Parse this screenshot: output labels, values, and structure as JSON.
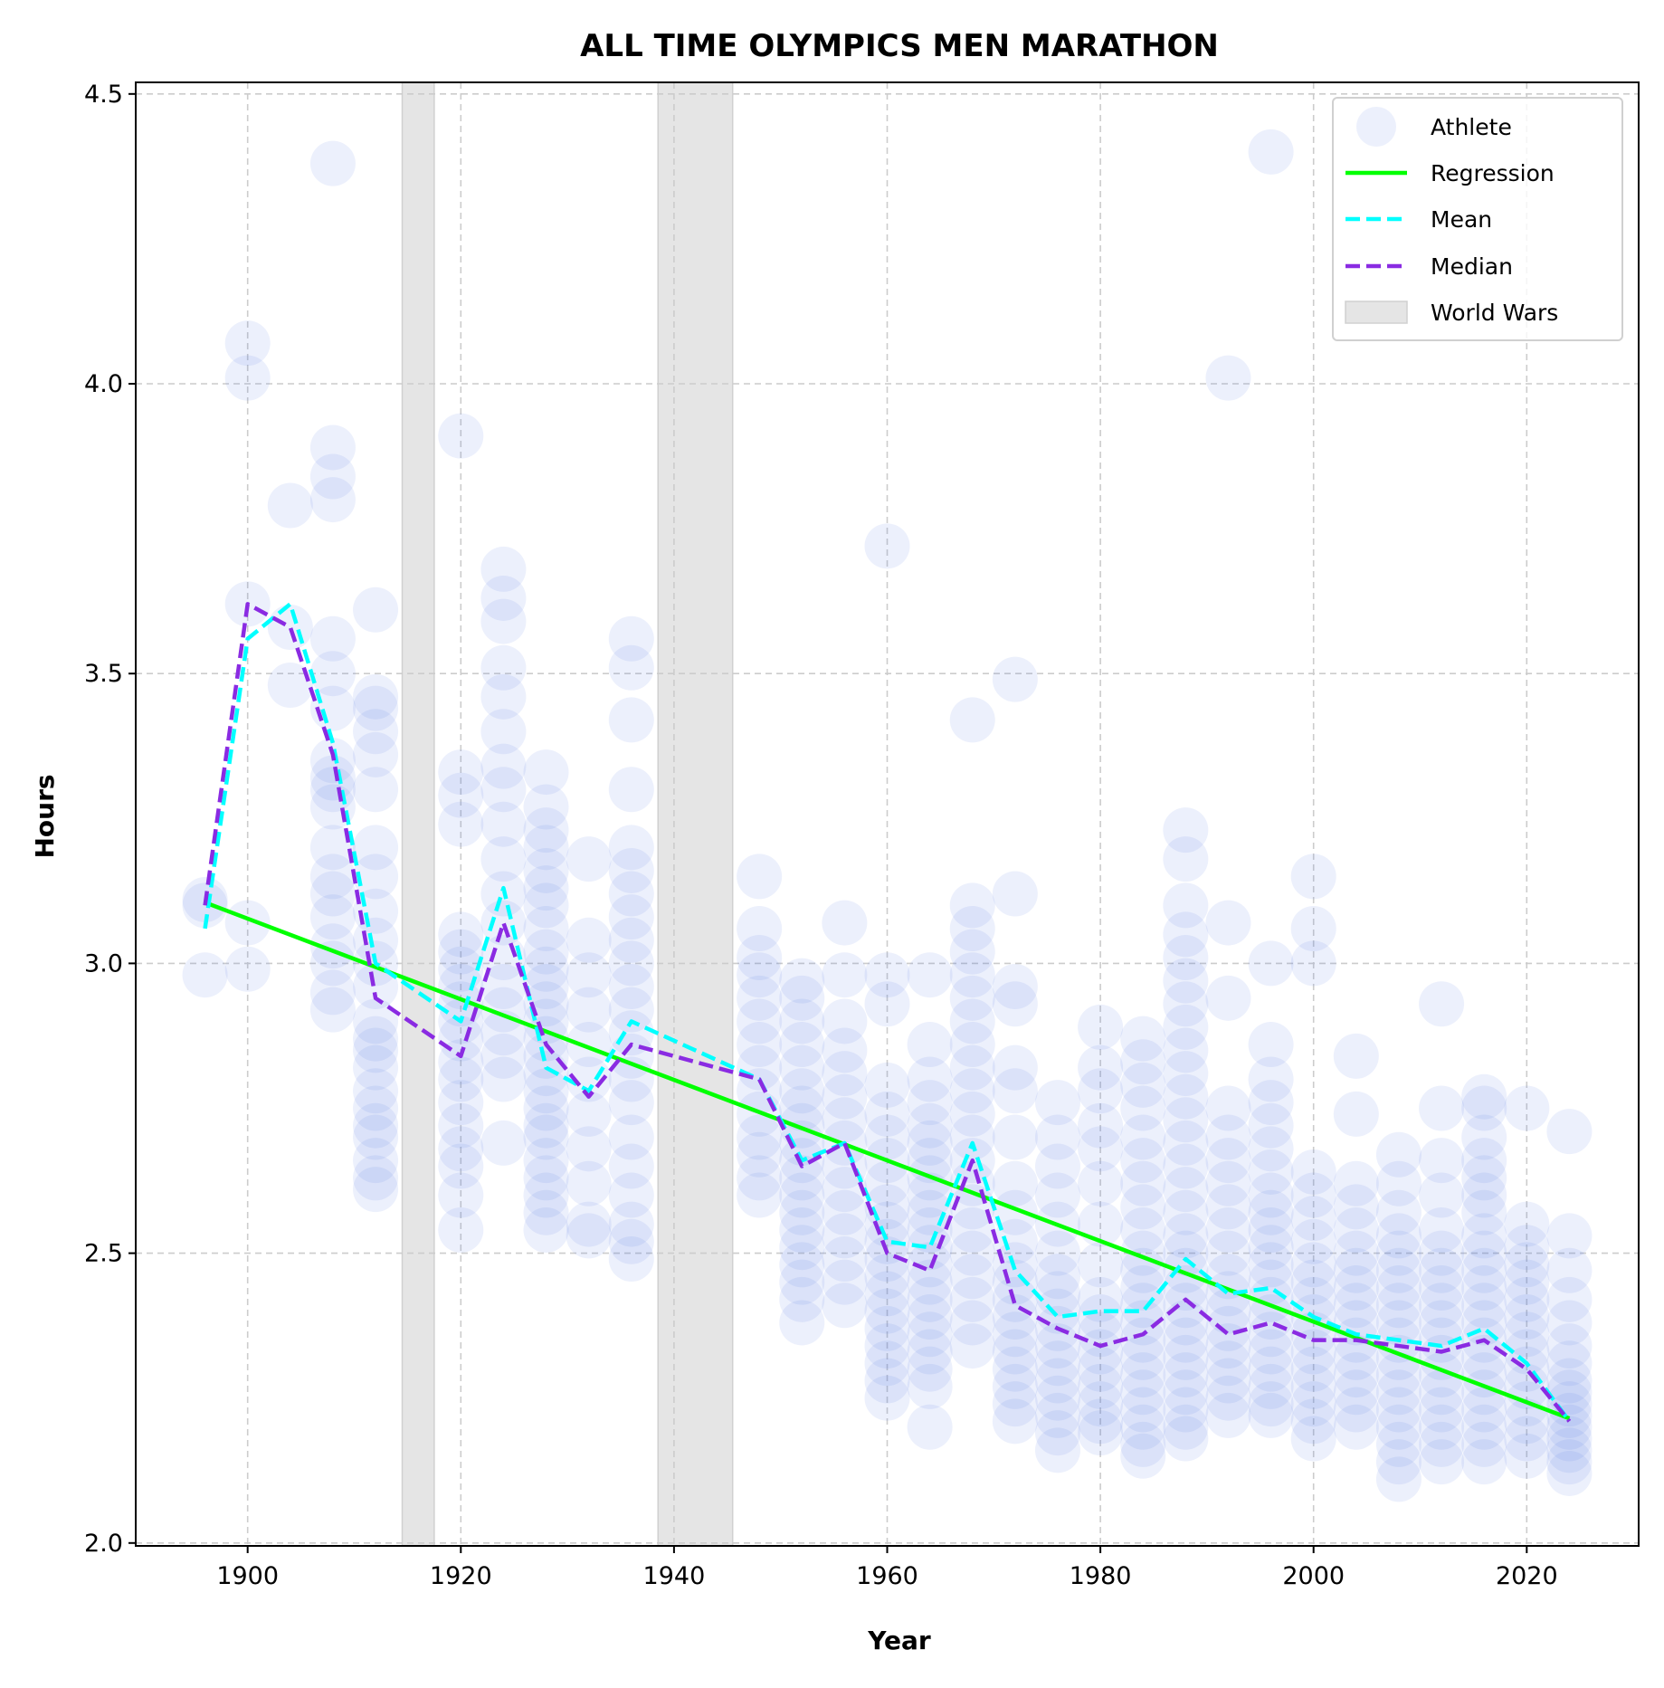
{
  "chart_data": {
    "type": "scatter",
    "title": "ALL TIME OLYMPICS MEN MARATHON",
    "xlabel": "Year",
    "ylabel": "Hours",
    "xlim": [
      1889.5,
      2030.5
    ],
    "ylim": [
      1.995,
      4.52
    ],
    "xticks": [
      1900,
      1920,
      1940,
      1960,
      1980,
      2000,
      2020
    ],
    "yticks": [
      2.0,
      2.5,
      3.0,
      3.5,
      4.0,
      4.5
    ],
    "grid": true,
    "legend_position": "top-right",
    "legend": [
      "Athlete",
      "Regression",
      "Mean",
      "Median",
      "World Wars"
    ],
    "colors": {
      "athlete": "#4169e1",
      "regression": "#00ff00",
      "mean": "#00ffff",
      "median": "#8a2be2",
      "world_wars": "#e5e5e5"
    },
    "world_wars": [
      [
        1914.5,
        1917.5
      ],
      [
        1938.5,
        1945.5
      ]
    ],
    "regression": {
      "x": [
        1896,
        2024
      ],
      "y": [
        3.105,
        2.215
      ]
    },
    "mean": {
      "x": [
        1896,
        1900,
        1904,
        1908,
        1912,
        1920,
        1924,
        1928,
        1932,
        1936,
        1948,
        1952,
        1956,
        1960,
        1964,
        1968,
        1972,
        1976,
        1980,
        1984,
        1988,
        1992,
        1996,
        2000,
        2004,
        2008,
        2012,
        2016,
        2020,
        2024
      ],
      "y": [
        3.06,
        3.56,
        3.62,
        3.38,
        3.0,
        2.9,
        3.13,
        2.82,
        2.78,
        2.9,
        2.8,
        2.66,
        2.69,
        2.52,
        2.51,
        2.69,
        2.47,
        2.39,
        2.4,
        2.4,
        2.49,
        2.43,
        2.44,
        2.39,
        2.36,
        2.35,
        2.34,
        2.37,
        2.31,
        2.21
      ]
    },
    "median": {
      "x": [
        1896,
        1900,
        1904,
        1908,
        1912,
        1920,
        1924,
        1928,
        1932,
        1936,
        1948,
        1952,
        1956,
        1960,
        1964,
        1968,
        1972,
        1976,
        1980,
        1984,
        1988,
        1992,
        1996,
        2000,
        2004,
        2008,
        2012,
        2016,
        2020,
        2024
      ],
      "y": [
        3.1,
        3.62,
        3.58,
        3.36,
        2.94,
        2.84,
        3.07,
        2.86,
        2.77,
        2.86,
        2.8,
        2.65,
        2.69,
        2.5,
        2.47,
        2.66,
        2.41,
        2.37,
        2.34,
        2.36,
        2.42,
        2.36,
        2.38,
        2.35,
        2.35,
        2.34,
        2.33,
        2.35,
        2.3,
        2.21
      ]
    },
    "athletes": [
      {
        "year": 1896,
        "times": [
          2.98,
          3.1,
          3.11
        ]
      },
      {
        "year": 1900,
        "times": [
          2.99,
          3.07,
          3.62,
          4.01,
          4.07
        ]
      },
      {
        "year": 1904,
        "times": [
          3.48,
          3.58,
          3.79
        ]
      },
      {
        "year": 1908,
        "times": [
          2.92,
          2.95,
          3.0,
          3.03,
          3.08,
          3.12,
          3.15,
          3.2,
          3.27,
          3.3,
          3.32,
          3.35,
          3.44,
          3.5,
          3.56,
          3.8,
          3.84,
          3.89,
          4.38
        ]
      },
      {
        "year": 1912,
        "times": [
          2.61,
          2.63,
          2.66,
          2.7,
          2.72,
          2.75,
          2.78,
          2.82,
          2.85,
          2.87,
          2.9,
          2.96,
          3.0,
          3.04,
          3.09,
          3.15,
          3.2,
          3.3,
          3.36,
          3.4,
          3.44,
          3.46,
          3.61
        ]
      },
      {
        "year": 1920,
        "times": [
          2.54,
          2.6,
          2.65,
          2.68,
          2.72,
          2.76,
          2.8,
          2.83,
          2.87,
          2.9,
          2.93,
          2.96,
          2.99,
          3.02,
          3.05,
          3.24,
          3.29,
          3.33,
          3.91
        ]
      },
      {
        "year": 1924,
        "times": [
          2.69,
          2.8,
          2.84,
          2.88,
          2.92,
          2.96,
          3.01,
          3.07,
          3.12,
          3.18,
          3.24,
          3.3,
          3.34,
          3.4,
          3.46,
          3.51,
          3.59,
          3.63,
          3.68
        ]
      },
      {
        "year": 1928,
        "times": [
          2.54,
          2.57,
          2.6,
          2.63,
          2.66,
          2.7,
          2.72,
          2.75,
          2.78,
          2.81,
          2.84,
          2.87,
          2.9,
          2.93,
          2.96,
          2.99,
          3.02,
          3.06,
          3.1,
          3.13,
          3.16,
          3.2,
          3.23,
          3.27,
          3.33
        ]
      },
      {
        "year": 1932,
        "times": [
          2.53,
          2.55,
          2.62,
          2.68,
          2.74,
          2.8,
          2.86,
          2.92,
          2.98,
          3.04,
          3.18
        ]
      },
      {
        "year": 1936,
        "times": [
          2.49,
          2.52,
          2.55,
          2.6,
          2.65,
          2.7,
          2.76,
          2.8,
          2.84,
          2.88,
          2.92,
          2.96,
          3.0,
          3.04,
          3.08,
          3.12,
          3.16,
          3.2,
          3.3,
          3.42,
          3.51,
          3.56
        ]
      },
      {
        "year": 1948,
        "times": [
          2.6,
          2.63,
          2.67,
          2.7,
          2.74,
          2.78,
          2.82,
          2.86,
          2.9,
          2.94,
          2.98,
          3.01,
          3.06,
          3.15
        ]
      },
      {
        "year": 1952,
        "times": [
          2.38,
          2.42,
          2.45,
          2.48,
          2.51,
          2.54,
          2.57,
          2.6,
          2.63,
          2.66,
          2.69,
          2.72,
          2.75,
          2.78,
          2.82,
          2.86,
          2.9,
          2.94,
          2.97
        ]
      },
      {
        "year": 1956,
        "times": [
          2.41,
          2.45,
          2.49,
          2.53,
          2.57,
          2.61,
          2.65,
          2.69,
          2.73,
          2.77,
          2.81,
          2.85,
          2.9,
          2.98,
          3.07
        ]
      },
      {
        "year": 1960,
        "times": [
          2.25,
          2.28,
          2.31,
          2.34,
          2.37,
          2.4,
          2.43,
          2.46,
          2.49,
          2.52,
          2.55,
          2.58,
          2.62,
          2.66,
          2.7,
          2.74,
          2.79,
          2.93,
          2.98,
          3.72
        ]
      },
      {
        "year": 1964,
        "times": [
          2.2,
          2.27,
          2.3,
          2.33,
          2.36,
          2.39,
          2.42,
          2.45,
          2.48,
          2.51,
          2.54,
          2.57,
          2.6,
          2.63,
          2.66,
          2.69,
          2.72,
          2.76,
          2.8,
          2.86,
          2.98
        ]
      },
      {
        "year": 1968,
        "times": [
          2.34,
          2.38,
          2.42,
          2.46,
          2.5,
          2.54,
          2.58,
          2.62,
          2.66,
          2.7,
          2.74,
          2.78,
          2.82,
          2.86,
          2.9,
          2.94,
          2.98,
          3.02,
          3.06,
          3.1,
          3.42
        ]
      },
      {
        "year": 1972,
        "times": [
          2.21,
          2.24,
          2.27,
          2.3,
          2.33,
          2.36,
          2.39,
          2.42,
          2.45,
          2.48,
          2.52,
          2.57,
          2.62,
          2.7,
          2.78,
          2.82,
          2.93,
          2.96,
          3.12,
          3.49
        ]
      },
      {
        "year": 1976,
        "times": [
          2.16,
          2.19,
          2.22,
          2.25,
          2.28,
          2.31,
          2.34,
          2.37,
          2.4,
          2.43,
          2.46,
          2.5,
          2.55,
          2.6,
          2.65,
          2.7,
          2.76
        ]
      },
      {
        "year": 1980,
        "times": [
          2.19,
          2.21,
          2.24,
          2.27,
          2.3,
          2.33,
          2.36,
          2.39,
          2.42,
          2.48,
          2.55,
          2.62,
          2.68,
          2.72,
          2.78,
          2.82,
          2.89
        ]
      },
      {
        "year": 1984,
        "times": [
          2.15,
          2.17,
          2.2,
          2.23,
          2.26,
          2.29,
          2.32,
          2.35,
          2.38,
          2.41,
          2.44,
          2.47,
          2.5,
          2.54,
          2.58,
          2.62,
          2.66,
          2.7,
          2.75,
          2.79,
          2.83,
          2.87
        ]
      },
      {
        "year": 1988,
        "times": [
          2.18,
          2.2,
          2.23,
          2.26,
          2.29,
          2.32,
          2.35,
          2.38,
          2.41,
          2.44,
          2.47,
          2.5,
          2.53,
          2.57,
          2.61,
          2.65,
          2.69,
          2.73,
          2.77,
          2.81,
          2.85,
          2.89,
          2.93,
          2.97,
          3.01,
          3.05,
          3.1,
          3.18,
          3.23
        ]
      },
      {
        "year": 1992,
        "times": [
          2.22,
          2.25,
          2.28,
          2.31,
          2.34,
          2.37,
          2.4,
          2.43,
          2.46,
          2.5,
          2.54,
          2.58,
          2.62,
          2.66,
          2.7,
          2.75,
          2.94,
          3.07,
          4.01
        ]
      },
      {
        "year": 1996,
        "times": [
          2.22,
          2.24,
          2.27,
          2.3,
          2.33,
          2.36,
          2.39,
          2.42,
          2.45,
          2.48,
          2.51,
          2.54,
          2.57,
          2.6,
          2.64,
          2.68,
          2.72,
          2.76,
          2.8,
          2.86,
          3.0,
          4.4
        ]
      },
      {
        "year": 2000,
        "times": [
          2.18,
          2.21,
          2.24,
          2.27,
          2.3,
          2.33,
          2.36,
          2.39,
          2.42,
          2.45,
          2.48,
          2.52,
          2.56,
          2.6,
          2.64,
          3.0,
          3.06,
          3.15
        ]
      },
      {
        "year": 2004,
        "times": [
          2.2,
          2.23,
          2.26,
          2.29,
          2.32,
          2.35,
          2.38,
          2.41,
          2.44,
          2.47,
          2.5,
          2.54,
          2.58,
          2.62,
          2.74,
          2.84
        ]
      },
      {
        "year": 2008,
        "times": [
          2.11,
          2.14,
          2.17,
          2.2,
          2.23,
          2.26,
          2.29,
          2.32,
          2.35,
          2.38,
          2.41,
          2.44,
          2.47,
          2.5,
          2.53,
          2.57,
          2.62,
          2.67
        ]
      },
      {
        "year": 2012,
        "times": [
          2.14,
          2.17,
          2.2,
          2.23,
          2.26,
          2.29,
          2.32,
          2.35,
          2.38,
          2.41,
          2.44,
          2.47,
          2.5,
          2.54,
          2.6,
          2.66,
          2.75,
          2.93
        ]
      },
      {
        "year": 2016,
        "times": [
          2.14,
          2.17,
          2.2,
          2.23,
          2.26,
          2.29,
          2.32,
          2.35,
          2.38,
          2.41,
          2.44,
          2.47,
          2.5,
          2.53,
          2.57,
          2.6,
          2.63,
          2.66,
          2.7,
          2.75,
          2.77
        ]
      },
      {
        "year": 2020,
        "times": [
          2.15,
          2.18,
          2.21,
          2.24,
          2.27,
          2.3,
          2.33,
          2.36,
          2.39,
          2.42,
          2.45,
          2.48,
          2.51,
          2.55,
          2.75
        ]
      },
      {
        "year": 2024,
        "times": [
          2.12,
          2.14,
          2.16,
          2.18,
          2.2,
          2.22,
          2.24,
          2.26,
          2.28,
          2.31,
          2.34,
          2.38,
          2.42,
          2.47,
          2.53,
          2.71
        ]
      }
    ]
  }
}
